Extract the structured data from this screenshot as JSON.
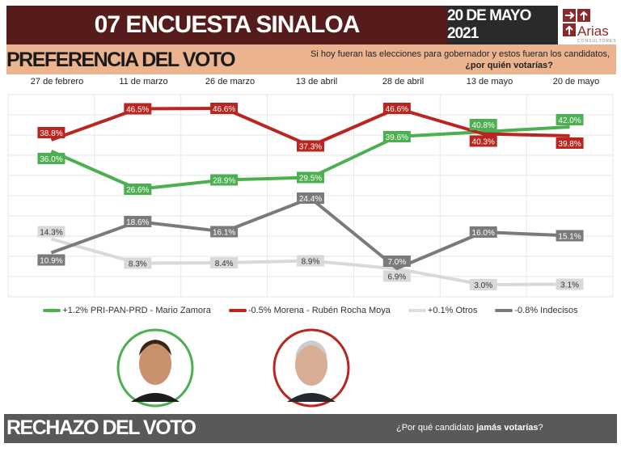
{
  "header": {
    "title": "07 ENCUESTA SINALOA",
    "date": "20 DE MAYO 2021",
    "logo_text": "Arias",
    "logo_sub": "CONSULTORES"
  },
  "section1": {
    "title": "PREFERENCIA DEL VOTO",
    "question_line1": "Si hoy fueran las elecciones para gobernador y estos fueran los candidatos,",
    "question_line2": "¿por quién votarías?"
  },
  "chart_data": {
    "type": "line",
    "categories": [
      "27 de febrero",
      "11 de marzo",
      "26 de marzo",
      "13 de abril",
      "28 de abril",
      "13 de mayo",
      "20 de mayo"
    ],
    "ylim": [
      0,
      50
    ],
    "grid": true,
    "legend": "bottom",
    "series": [
      {
        "name": "+1.2% PRI-PAN-PRD - Mario Zamora",
        "color": "#4caf50",
        "values": [
          36.0,
          26.6,
          28.9,
          29.5,
          39.6,
          40.8,
          42.0
        ]
      },
      {
        "name": "-0.5% Morena - Rubén Rocha Moya",
        "color": "#b8261f",
        "values": [
          38.8,
          46.5,
          46.6,
          37.3,
          46.6,
          40.3,
          39.8
        ]
      },
      {
        "name": "+0.1% Otros",
        "color": "#d9d9d9",
        "values": [
          14.3,
          8.3,
          8.4,
          8.9,
          6.9,
          3.0,
          3.1
        ]
      },
      {
        "name": "-0.8% Indecisos",
        "color": "#7a7a7a",
        "values": [
          10.9,
          18.6,
          16.1,
          24.4,
          7.0,
          16.0,
          15.1
        ]
      }
    ]
  },
  "section2": {
    "title": "RECHAZO DEL VOTO",
    "question_pre": "¿Por qué candidato ",
    "question_bold": "jamás votarías",
    "question_post": "?"
  }
}
